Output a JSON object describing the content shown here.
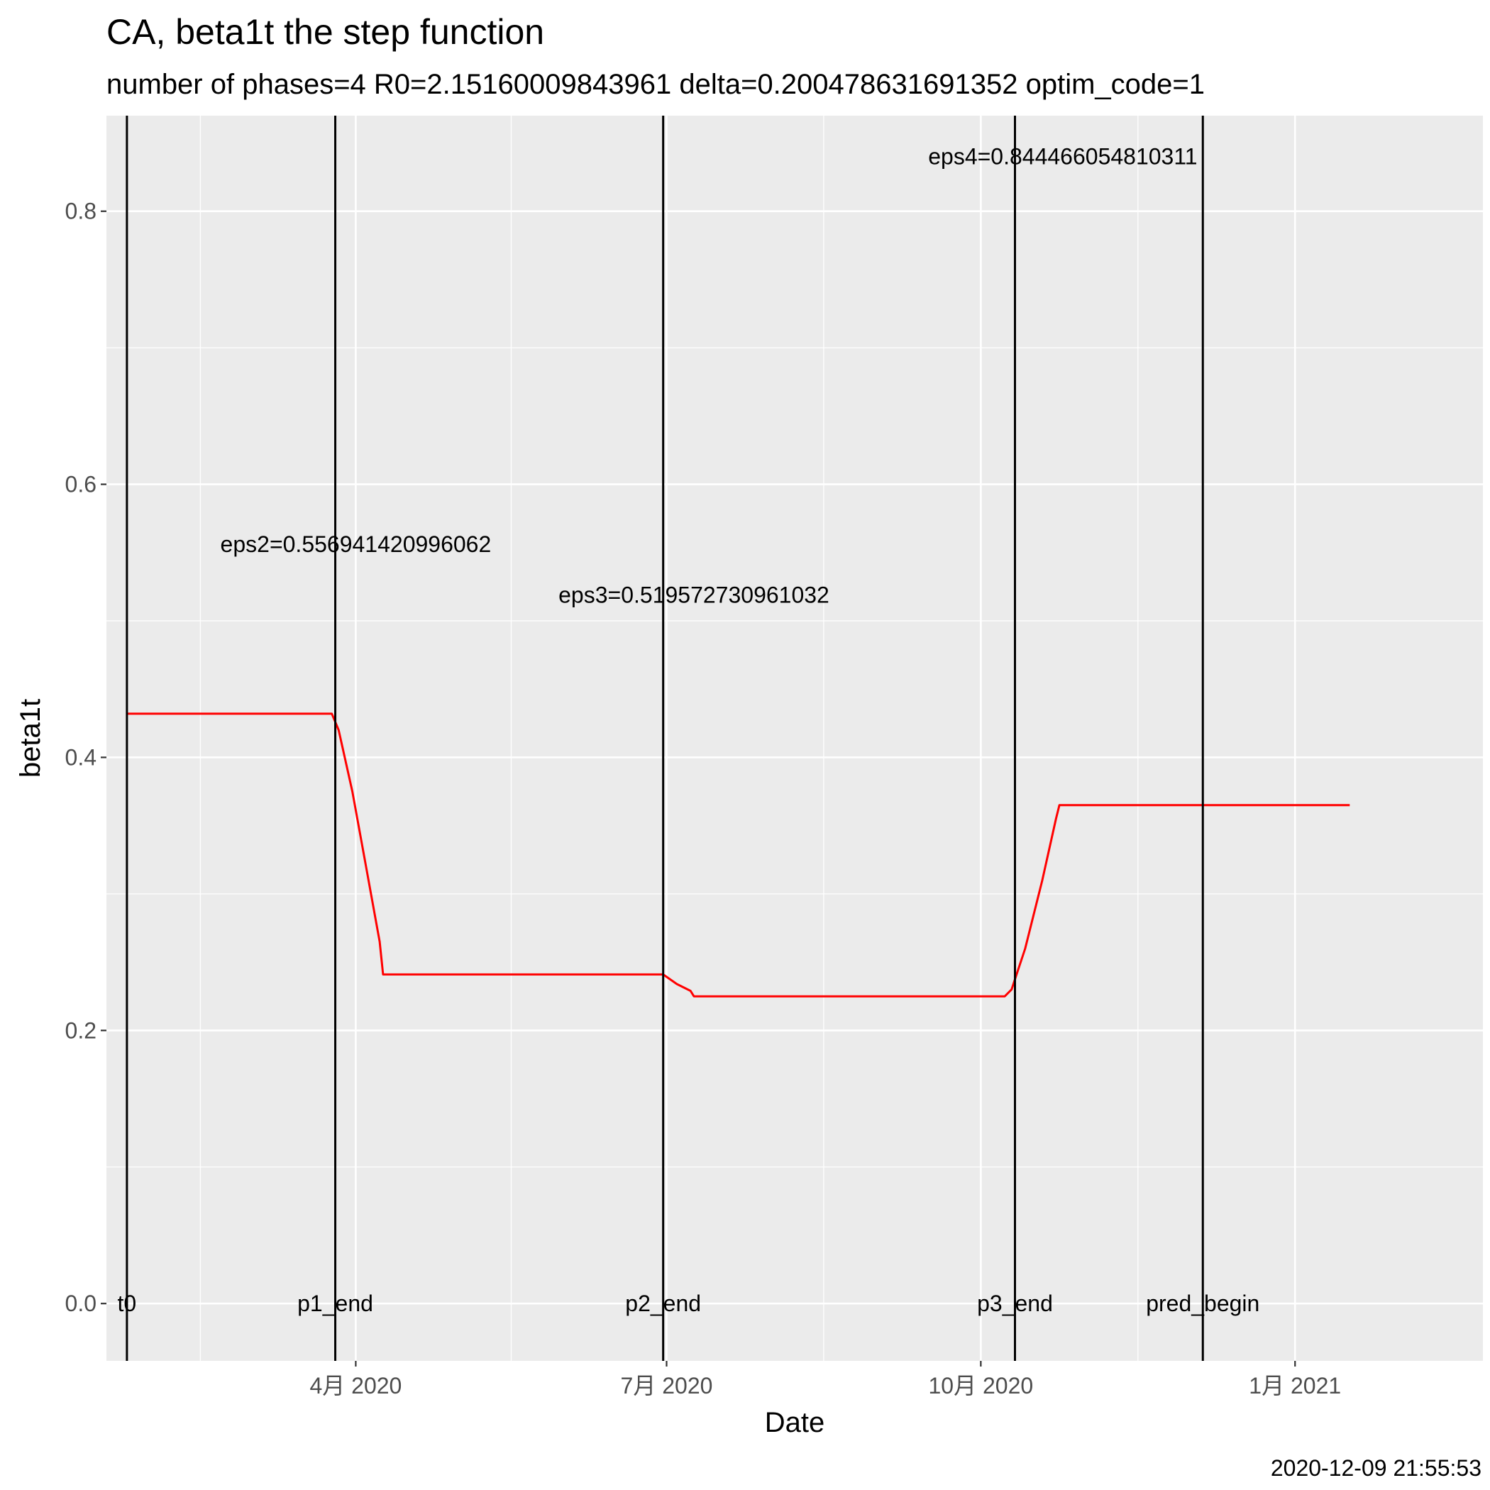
{
  "chart_data": {
    "type": "line",
    "title": "CA, beta1t the step function",
    "subtitle": "number of phases=4   R0=2.15160009843961   delta=0.200478631691352   optim_code=1",
    "xlabel": "Date",
    "ylabel": "beta1t",
    "caption": "2020-12-09 21:55:53",
    "xlim": [
      "2020-01-19",
      "2021-02-25"
    ],
    "ylim": [
      -0.042,
      0.87
    ],
    "x_ticks": [
      {
        "date": "2020-04-01",
        "label": "4月 2020"
      },
      {
        "date": "2020-07-01",
        "label": "7月 2020"
      },
      {
        "date": "2020-10-01",
        "label": "10月 2020"
      },
      {
        "date": "2021-01-01",
        "label": "1月 2021"
      }
    ],
    "y_ticks": [
      {
        "value": 0.0,
        "label": "0.0"
      },
      {
        "value": 0.2,
        "label": "0.2"
      },
      {
        "value": 0.4,
        "label": "0.4"
      },
      {
        "value": 0.6,
        "label": "0.6"
      },
      {
        "value": 0.8,
        "label": "0.8"
      }
    ],
    "grid": true,
    "background": "#ebebeb",
    "line_color": "#ff0000",
    "series": [
      {
        "color": "#ff0000",
        "points": [
          {
            "x": "2020-01-25",
            "y": 0.432
          },
          {
            "x": "2020-03-25",
            "y": 0.432
          },
          {
            "x": "2020-03-27",
            "y": 0.42
          },
          {
            "x": "2020-03-31",
            "y": 0.375
          },
          {
            "x": "2020-04-04",
            "y": 0.32
          },
          {
            "x": "2020-04-08",
            "y": 0.265
          },
          {
            "x": "2020-04-09",
            "y": 0.241
          },
          {
            "x": "2020-06-30",
            "y": 0.241
          },
          {
            "x": "2020-07-04",
            "y": 0.234
          },
          {
            "x": "2020-07-08",
            "y": 0.229
          },
          {
            "x": "2020-07-09",
            "y": 0.225
          },
          {
            "x": "2020-10-08",
            "y": 0.225
          },
          {
            "x": "2020-10-10",
            "y": 0.23
          },
          {
            "x": "2020-10-14",
            "y": 0.26
          },
          {
            "x": "2020-10-19",
            "y": 0.31
          },
          {
            "x": "2020-10-23",
            "y": 0.355
          },
          {
            "x": "2020-10-24",
            "y": 0.365
          },
          {
            "x": "2021-01-17",
            "y": 0.365
          }
        ]
      }
    ],
    "vlines": [
      {
        "date": "2020-01-25",
        "label": "t0"
      },
      {
        "date": "2020-03-26",
        "label": "p1_end"
      },
      {
        "date": "2020-06-30",
        "label": "p2_end"
      },
      {
        "date": "2020-10-11",
        "label": "p3_end"
      },
      {
        "date": "2020-12-05",
        "label": "pred_begin"
      }
    ],
    "annotations": [
      {
        "text": "eps2=0.556941420996062",
        "x": "2020-04-01",
        "y": 0.556
      },
      {
        "text": "eps3=0.519572730961032",
        "x": "2020-07-09",
        "y": 0.519
      },
      {
        "text": "eps4=0.844466054810311",
        "x": "2020-10-25",
        "y": 0.84
      }
    ]
  }
}
